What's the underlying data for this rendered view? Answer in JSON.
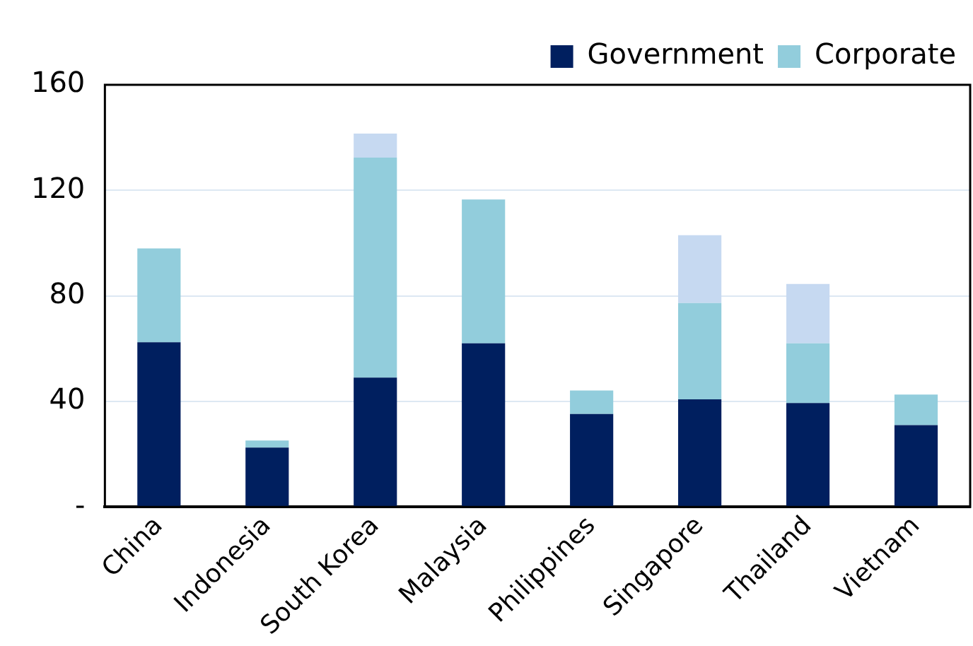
{
  "chart_data": {
    "type": "bar",
    "stacked": true,
    "categories": [
      "China",
      "Indonesia",
      "South Korea",
      "Malaysia",
      "Philippines",
      "Singapore",
      "Thailand",
      "Vietnam"
    ],
    "series": [
      {
        "name": "Government",
        "color": "#001f5f",
        "values": [
          62.4,
          22.5,
          49,
          62,
          35.2,
          40.8,
          39.4,
          31
        ]
      },
      {
        "name": "Corporate",
        "color": "#92cddc",
        "values": [
          35.6,
          2.7,
          83.4,
          54.5,
          8.9,
          36.5,
          22.6,
          11.6
        ]
      },
      {
        "color": "#c6d9f1",
        "values": [
          null,
          null,
          9.1,
          null,
          null,
          25.7,
          22.5,
          null
        ]
      }
    ],
    "ylim": [
      0,
      160
    ],
    "yticks": [
      {
        "value": 0,
        "label": "-"
      },
      40,
      80,
      120,
      160
    ],
    "grid": "y",
    "legend": "top right"
  }
}
